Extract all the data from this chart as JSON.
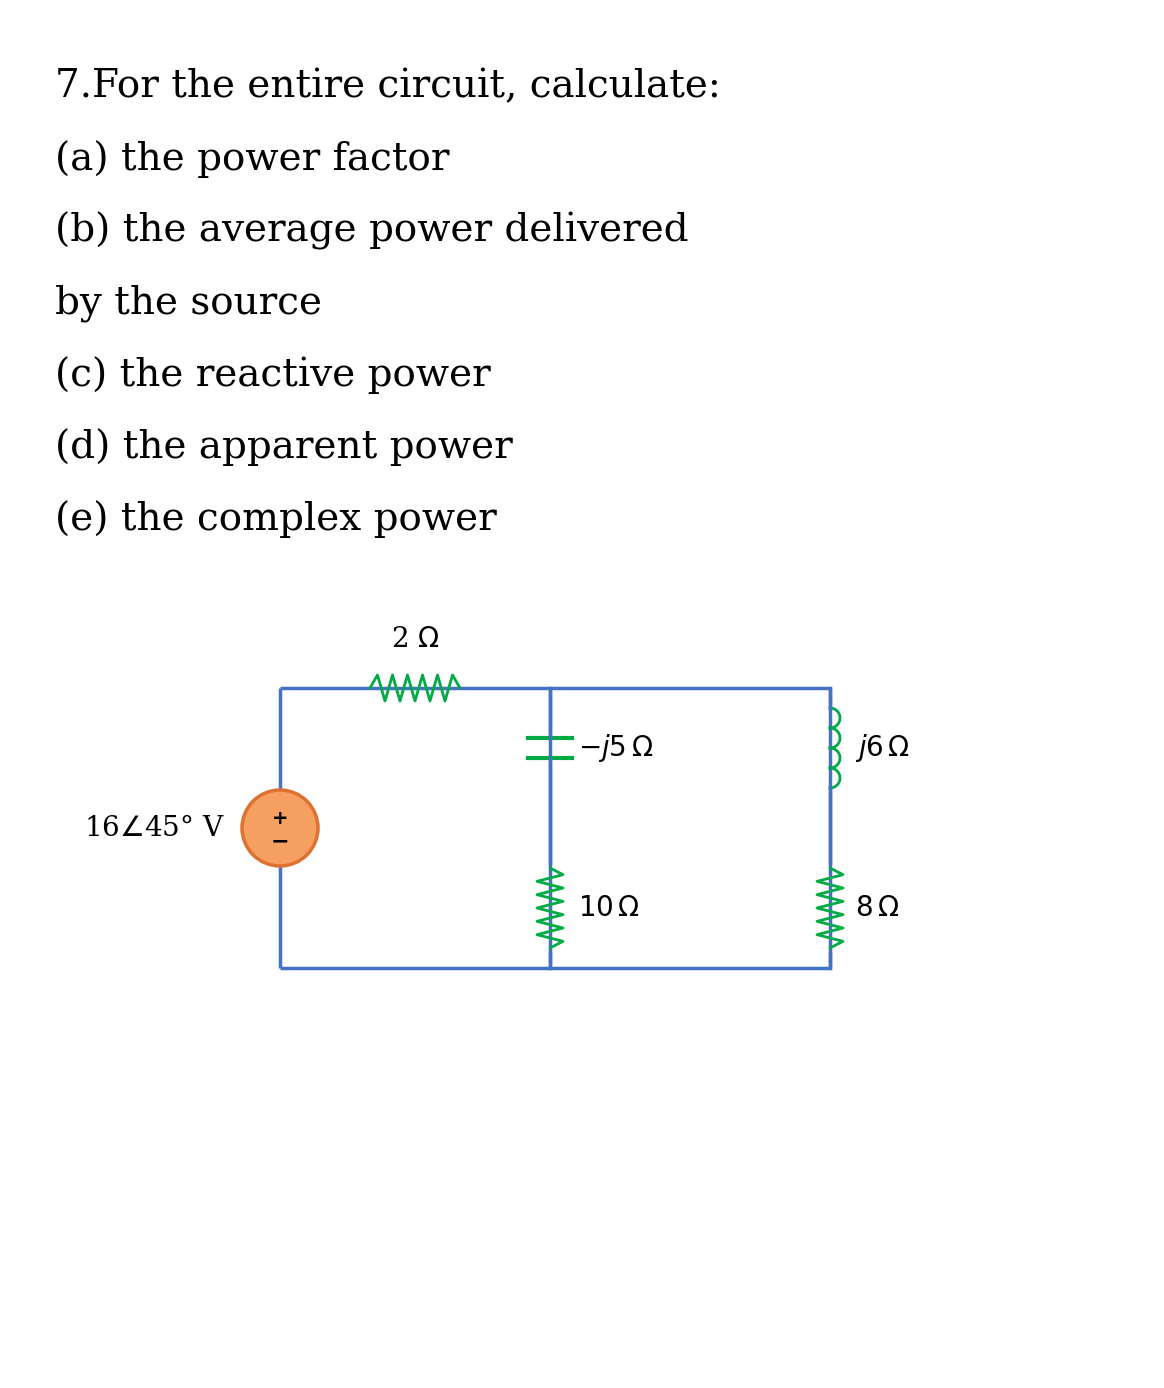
{
  "title_lines": [
    "7.For the entire circuit, calculate:",
    "(a) the power factor",
    "(b) the average power delivered",
    "by the source",
    "(c) the reactive power",
    "(d) the apparent power",
    "(e) the complex power"
  ],
  "title_fontsize": 28,
  "bg_color": "#ffffff",
  "circuit_wire_color": "#4472c4",
  "circuit_component_color": "#00aa44",
  "source_color": "#e07030",
  "source_fill": "#f5a060",
  "text_color": "#000000",
  "wire_linewidth": 2.5,
  "component_linewidth": 2.0
}
